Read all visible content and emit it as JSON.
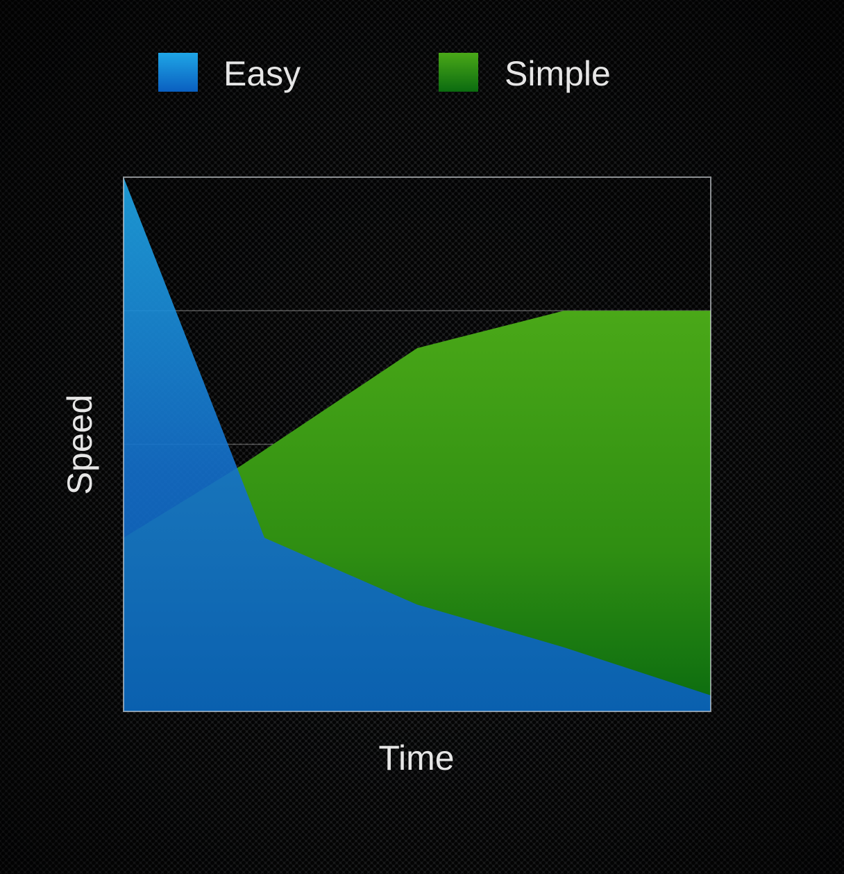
{
  "chart_data": {
    "type": "area",
    "xlabel": "Time",
    "ylabel": "Speed",
    "xlim": [
      0,
      100
    ],
    "ylim": [
      0,
      100
    ],
    "grid": true,
    "legend_position": "top",
    "series": [
      {
        "name": "Easy",
        "color": "#1a73d6",
        "x": [
          0,
          24,
          50,
          75,
          100
        ],
        "values": [
          100,
          32.5,
          20,
          12,
          3
        ]
      },
      {
        "name": "Simple",
        "color": "#3f9a1a",
        "x": [
          0,
          20,
          50,
          75,
          100
        ],
        "values": [
          32.5,
          46,
          68,
          75,
          75
        ]
      }
    ]
  }
}
